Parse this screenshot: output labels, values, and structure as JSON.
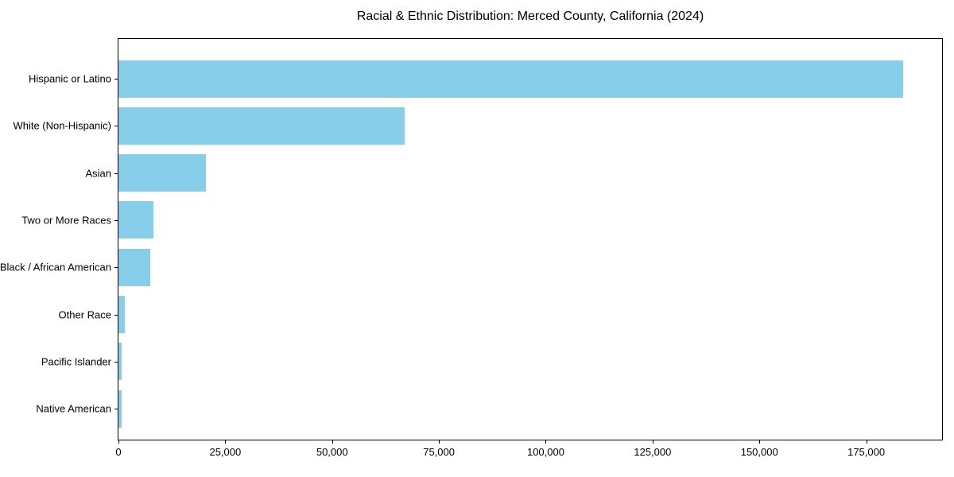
{
  "figure": {
    "background": "#ffffff"
  },
  "colors": {
    "bar": "#87CEEB",
    "axis": "#000000",
    "text": "#000000",
    "background": "#ffffff"
  },
  "chart_data": {
    "type": "bar",
    "orientation": "horizontal",
    "title": "Racial & Ethnic Distribution: Merced County, California (2024)",
    "xlabel": "",
    "ylabel": "",
    "categories": [
      "Hispanic or Latino",
      "White (Non-Hispanic)",
      "Asian",
      "Two or More Races",
      "Black / African American",
      "Other Race",
      "Pacific Islander",
      "Native American"
    ],
    "values": [
      183600,
      67000,
      20400,
      8200,
      7400,
      1400,
      750,
      700
    ],
    "bar_color": "#87CEEB",
    "xlim": [
      0,
      192750
    ],
    "xticks": [
      {
        "value": 0,
        "label": "0"
      },
      {
        "value": 25000,
        "label": "25,000"
      },
      {
        "value": 50000,
        "label": "50,000"
      },
      {
        "value": 75000,
        "label": "75,000"
      },
      {
        "value": 100000,
        "label": "100,000"
      },
      {
        "value": 125000,
        "label": "125,000"
      },
      {
        "value": 150000,
        "label": "150,000"
      },
      {
        "value": 175000,
        "label": "175,000"
      }
    ],
    "grid": false,
    "legend": false
  }
}
